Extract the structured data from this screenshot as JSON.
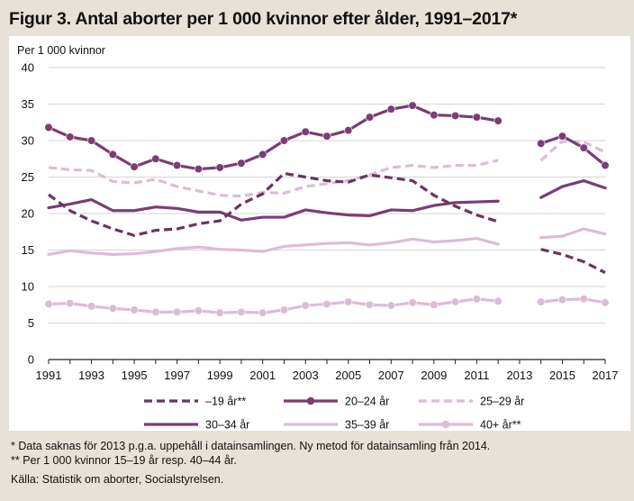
{
  "figure_title": "Figur 3. Antal aborter per 1 000 kvinnor efter ålder, 1991–2017*",
  "footnotes": [
    "* Data saknas för 2013 p.g.a. uppehåll i datainsamlingen. Ny metod för datainsamling från 2014.",
    "** Per 1 000 kvinnor 15–19 år resp. 40–44 år."
  ],
  "source": "Källa: Statistik om aborter, Socialstyrelsen.",
  "chart_data": {
    "type": "line",
    "title": "",
    "ylabel": "Per 1 000 kvinnor",
    "xlabel": "",
    "x": [
      1991,
      1992,
      1993,
      1994,
      1995,
      1996,
      1997,
      1998,
      1999,
      2000,
      2001,
      2002,
      2003,
      2004,
      2005,
      2006,
      2007,
      2008,
      2009,
      2010,
      2011,
      2012,
      2013,
      2014,
      2015,
      2016,
      2017
    ],
    "x_ticks": [
      "1991",
      "1993",
      "1995",
      "1997",
      "1999",
      "2001",
      "2003",
      "2005",
      "2007",
      "2009",
      "2011",
      "2013",
      "2015",
      "2017"
    ],
    "y_ticks": [
      "0",
      "5",
      "10",
      "15",
      "20",
      "25",
      "30",
      "35",
      "40"
    ],
    "ylim": [
      0,
      40
    ],
    "xlim": [
      1991,
      2017
    ],
    "grid": "horizontal",
    "legend_position": "bottom",
    "series": [
      {
        "name": "–19 år**",
        "color": "#6b3560",
        "style": "dashed",
        "markers": false,
        "values": [
          22.6,
          20.4,
          19.0,
          17.9,
          17.0,
          17.7,
          17.9,
          18.6,
          19.0,
          21.3,
          22.7,
          25.5,
          25.0,
          24.5,
          24.3,
          25.3,
          24.9,
          24.5,
          22.5,
          21.0,
          19.8,
          18.9,
          null,
          15.1,
          14.4,
          13.4,
          11.9
        ]
      },
      {
        "name": "20–24 år",
        "color": "#7b3d72",
        "style": "solid",
        "markers": true,
        "values": [
          31.8,
          30.5,
          30.0,
          28.1,
          26.4,
          27.5,
          26.6,
          26.1,
          26.3,
          26.9,
          28.1,
          30.0,
          31.2,
          30.6,
          31.4,
          33.2,
          34.3,
          34.8,
          33.5,
          33.4,
          33.2,
          32.7,
          null,
          29.6,
          30.6,
          29.0,
          26.6
        ]
      },
      {
        "name": "25–29 år",
        "color": "#dcbcd5",
        "style": "dashed",
        "markers": false,
        "values": [
          26.3,
          26.0,
          25.9,
          24.4,
          24.2,
          24.7,
          23.7,
          23.1,
          22.5,
          22.4,
          22.9,
          22.8,
          23.7,
          24.1,
          24.5,
          25.3,
          26.3,
          26.6,
          26.3,
          26.6,
          26.6,
          27.3,
          null,
          27.3,
          29.9,
          29.8,
          28.4
        ]
      },
      {
        "name": "30–34 år",
        "color": "#7b3d72",
        "style": "solid",
        "markers": false,
        "values": [
          20.8,
          21.3,
          21.9,
          20.4,
          20.4,
          20.9,
          20.7,
          20.2,
          20.2,
          19.1,
          19.5,
          19.5,
          20.5,
          20.1,
          19.8,
          19.7,
          20.5,
          20.4,
          21.1,
          21.5,
          21.6,
          21.7,
          null,
          22.2,
          23.7,
          24.5,
          23.5
        ]
      },
      {
        "name": "35–39 år",
        "color": "#dcbcd5",
        "style": "solid",
        "markers": false,
        "values": [
          14.4,
          14.9,
          14.6,
          14.4,
          14.5,
          14.8,
          15.2,
          15.4,
          15.1,
          15.0,
          14.8,
          15.5,
          15.7,
          15.9,
          16.0,
          15.7,
          16.0,
          16.5,
          16.1,
          16.3,
          16.6,
          15.8,
          null,
          16.7,
          16.9,
          17.9,
          17.2
        ]
      },
      {
        "name": "40+ år**",
        "color": "#dcbcd5",
        "style": "solid",
        "markers": true,
        "values": [
          7.6,
          7.7,
          7.3,
          7.0,
          6.8,
          6.5,
          6.5,
          6.7,
          6.4,
          6.5,
          6.4,
          6.8,
          7.4,
          7.6,
          7.9,
          7.5,
          7.4,
          7.8,
          7.5,
          7.9,
          8.3,
          8.0,
          null,
          7.9,
          8.2,
          8.3,
          7.8
        ]
      }
    ]
  }
}
